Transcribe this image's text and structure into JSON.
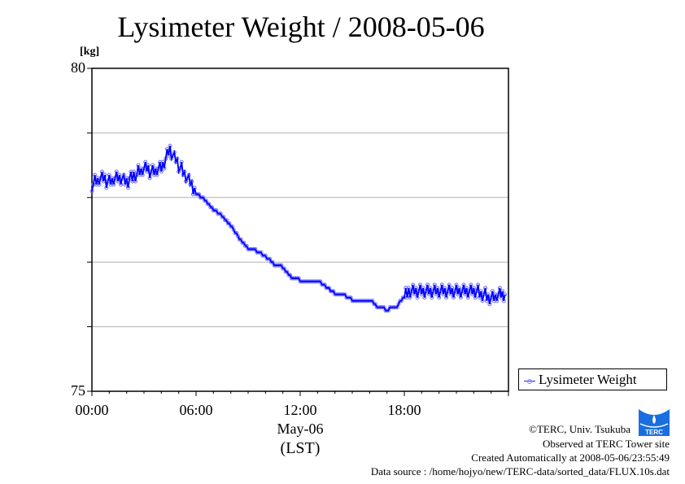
{
  "chart_data": {
    "type": "line",
    "title": "Lysimeter Weight / 2008-05-06",
    "ylabel": "[kg]",
    "xlabel": "May-06",
    "xlabel2": "(LST)",
    "xlim_hours": [
      0,
      24
    ],
    "ylim": [
      75,
      80
    ],
    "y_ticks": [
      75,
      76,
      77,
      78,
      79,
      80
    ],
    "y_tick_labels": [
      {
        "value": 80,
        "label": "80"
      },
      {
        "value": 75,
        "label": "75"
      }
    ],
    "x_tick_labels": [
      {
        "hour": 0,
        "label": "00:00"
      },
      {
        "hour": 6,
        "label": "06:00"
      },
      {
        "hour": 12,
        "label": "12:00"
      },
      {
        "hour": 18,
        "label": "18:00"
      }
    ],
    "grid": true,
    "legend_position": "bottom-right-outside",
    "series": [
      {
        "name": "Lysimeter Weight",
        "color": "#0000ff",
        "marker_color": "#7070ff",
        "x_hours": [
          0,
          0.5,
          1,
          1.5,
          2,
          2.5,
          3,
          3.5,
          4,
          4.5,
          5,
          5.5,
          6,
          6.5,
          7,
          7.5,
          8,
          8.5,
          9,
          9.5,
          10,
          10.5,
          11,
          11.5,
          12,
          12.5,
          13,
          13.5,
          14,
          14.5,
          15,
          15.5,
          16,
          16.5,
          17,
          17.5,
          18,
          18.5,
          19,
          19.5,
          20,
          20.5,
          21,
          21.5,
          22,
          22.5,
          23,
          23.5,
          23.8
        ],
        "values": [
          78.2,
          78.3,
          78.25,
          78.3,
          78.25,
          78.35,
          78.45,
          78.4,
          78.45,
          78.75,
          78.5,
          78.3,
          78.1,
          78.0,
          77.85,
          77.75,
          77.6,
          77.4,
          77.25,
          77.2,
          77.12,
          77.0,
          76.95,
          76.8,
          76.75,
          76.75,
          76.75,
          76.65,
          76.55,
          76.52,
          76.45,
          76.45,
          76.45,
          76.32,
          76.3,
          76.32,
          76.5,
          76.55,
          76.55,
          76.55,
          76.55,
          76.55,
          76.55,
          76.55,
          76.55,
          76.5,
          76.45,
          76.5,
          76.5
        ]
      }
    ]
  },
  "footer": {
    "copyright": "©TERC, Univ. Tsukuba",
    "observed": "Observed at TERC Tower site",
    "created": "Created Automatically at 2008-05-06/23:55:49",
    "source": "Data source : /home/hojyo/new/TERC-data/sorted_data/FLUX.10s.dat",
    "logo_text": "TERC"
  }
}
